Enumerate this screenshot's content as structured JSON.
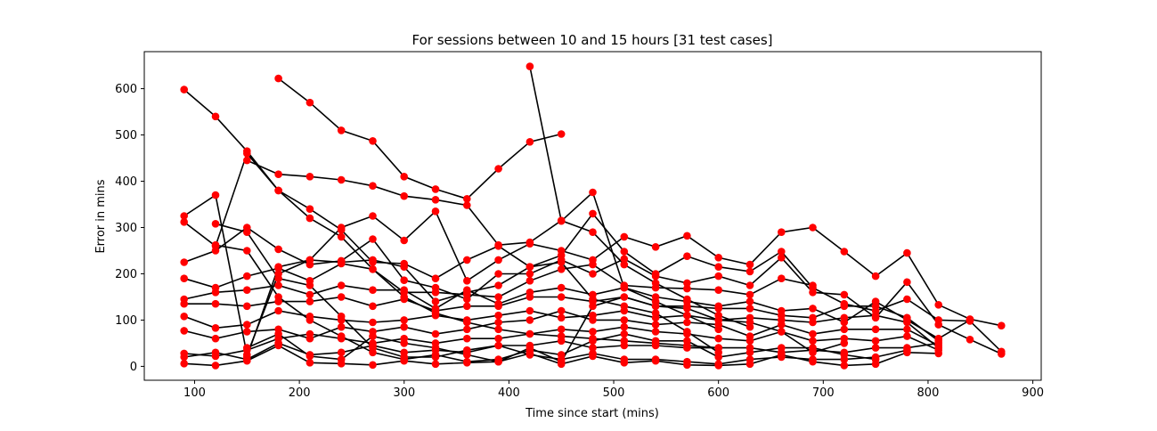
{
  "chart_data": {
    "type": "line",
    "title": "For sessions between 10 and 15 hours [31 test cases]",
    "xlabel": "Time since start (mins)",
    "ylabel": "Error in mins",
    "xlim": [
      52,
      908
    ],
    "ylim": [
      -30,
      680
    ],
    "xticks": [
      100,
      200,
      300,
      400,
      500,
      600,
      700,
      800,
      900
    ],
    "yticks": [
      0,
      100,
      200,
      300,
      400,
      500,
      600
    ],
    "line_color": "#000000",
    "marker_color": "#ff0000",
    "grid": false,
    "series": [
      {
        "x": [
          90,
          120,
          150,
          180,
          210,
          240,
          270,
          300,
          330,
          360,
          390,
          420,
          450,
          480,
          510,
          540,
          570,
          600
        ],
        "y": [
          598,
          540,
          465,
          380,
          320,
          280,
          210,
          150,
          115,
          95,
          80,
          70,
          65,
          60,
          55,
          50,
          45,
          40
        ]
      },
      {
        "x": [
          180,
          210,
          240,
          270,
          300,
          330,
          360,
          390,
          420,
          450
        ],
        "y": [
          622,
          570,
          510,
          487,
          410,
          383,
          362,
          427,
          485,
          502
        ]
      },
      {
        "x": [
          150,
          180,
          210,
          240,
          270,
          300,
          330,
          360,
          390,
          420,
          450,
          480,
          510,
          540,
          570,
          600,
          630
        ],
        "y": [
          445,
          415,
          410,
          403,
          390,
          368,
          360,
          348,
          262,
          268,
          315,
          290,
          220,
          180,
          145,
          110,
          85
        ]
      },
      {
        "x": [
          420,
          450,
          480,
          510,
          540,
          570,
          600
        ],
        "y": [
          648,
          314,
          376,
          170,
          140,
          110,
          80
        ]
      },
      {
        "x": [
          90,
          120,
          150,
          180,
          210,
          240,
          270,
          300,
          330,
          360,
          390,
          420,
          450,
          480,
          510,
          540,
          570,
          600,
          630,
          660,
          690,
          720,
          750,
          780,
          810,
          840,
          870
        ],
        "y": [
          325,
          370,
          25,
          200,
          230,
          300,
          325,
          272,
          335,
          185,
          230,
          265,
          250,
          230,
          280,
          258,
          282,
          235,
          220,
          290,
          300,
          248,
          195,
          245,
          133,
          102,
          88
        ]
      },
      {
        "x": [
          90,
          120,
          150,
          180,
          210,
          240,
          270,
          300,
          330,
          360,
          390,
          420,
          450,
          480,
          510,
          540,
          570,
          600,
          630,
          660,
          690,
          720,
          750,
          780,
          810,
          840,
          870
        ],
        "y": [
          312,
          260,
          460,
          380,
          340,
          295,
          225,
          222,
          190,
          230,
          260,
          215,
          240,
          330,
          248,
          200,
          238,
          215,
          205,
          248,
          170,
          135,
          120,
          145,
          100,
          98,
          32
        ]
      },
      {
        "x": [
          90,
          120,
          150,
          180,
          210,
          240,
          270,
          300,
          330,
          360,
          390,
          420,
          450,
          480,
          510,
          540,
          570,
          600,
          630,
          660,
          690,
          720,
          750,
          780,
          810,
          840,
          870
        ],
        "y": [
          225,
          250,
          300,
          253,
          220,
          228,
          275,
          186,
          170,
          145,
          200,
          200,
          230,
          200,
          232,
          195,
          180,
          195,
          175,
          235,
          160,
          155,
          105,
          182,
          90,
          58,
          27
        ]
      },
      {
        "x": [
          90,
          120,
          150,
          180,
          210,
          240,
          270,
          300,
          330,
          360,
          390,
          420,
          450,
          480,
          510,
          540,
          570,
          600,
          630,
          660,
          690
        ],
        "y": [
          190,
          170,
          195,
          212,
          185,
          222,
          210,
          160,
          160,
          155,
          150,
          185,
          210,
          220,
          175,
          170,
          168,
          165,
          155,
          190,
          175
        ]
      },
      {
        "x": [
          90,
          120,
          150,
          180,
          210,
          240,
          270,
          300,
          330,
          360,
          390,
          420,
          450,
          480,
          510,
          540,
          570,
          600,
          630,
          660,
          690,
          720,
          750,
          780,
          810,
          840
        ],
        "y": [
          145,
          160,
          165,
          175,
          155,
          175,
          165,
          165,
          125,
          165,
          135,
          160,
          170,
          155,
          170,
          150,
          140,
          130,
          140,
          120,
          125,
          95,
          140,
          100,
          60,
          100
        ]
      },
      {
        "x": [
          90,
          120,
          150,
          180,
          210,
          240,
          270,
          300,
          330,
          360,
          390,
          420,
          450,
          480,
          510,
          540,
          570,
          600,
          630,
          660,
          690,
          720,
          750,
          780,
          810
        ],
        "y": [
          135,
          135,
          130,
          140,
          140,
          150,
          130,
          145,
          120,
          130,
          130,
          150,
          150,
          140,
          150,
          130,
          130,
          125,
          125,
          110,
          105,
          130,
          130,
          105,
          55
        ]
      },
      {
        "x": [
          90,
          120,
          150,
          180,
          210,
          240,
          270,
          300,
          330,
          360,
          390,
          420,
          450,
          480,
          510,
          540,
          570,
          600,
          630,
          660,
          690,
          720,
          750,
          780,
          810
        ],
        "y": [
          108,
          83,
          90,
          120,
          108,
          100,
          95,
          100,
          110,
          100,
          110,
          120,
          105,
          110,
          120,
          105,
          110,
          100,
          105,
          100,
          95,
          105,
          110,
          95,
          40
        ]
      },
      {
        "x": [
          90,
          120,
          150,
          180,
          210,
          240,
          270,
          300,
          330,
          360,
          390,
          420,
          450,
          480,
          510,
          540,
          570,
          600,
          630,
          660,
          690,
          720,
          750,
          780,
          810
        ],
        "y": [
          77,
          60,
          75,
          80,
          60,
          85,
          75,
          85,
          70,
          80,
          95,
          100,
          120,
          100,
          100,
          90,
          95,
          90,
          65,
          90,
          70,
          80,
          80,
          80,
          45
        ]
      },
      {
        "x": [
          90,
          120,
          150,
          180,
          210,
          240,
          270,
          300,
          330,
          360,
          390,
          420,
          450,
          480,
          510,
          540,
          570,
          600,
          630,
          660,
          690,
          720,
          750,
          780,
          810
        ],
        "y": [
          28,
          22,
          35,
          60,
          70,
          60,
          50,
          60,
          50,
          60,
          60,
          70,
          80,
          75,
          85,
          75,
          70,
          60,
          55,
          75,
          55,
          60,
          55,
          65,
          35
        ]
      },
      {
        "x": [
          90,
          120,
          150,
          180,
          210,
          240,
          270,
          300,
          330,
          360,
          390,
          420,
          450,
          480,
          510,
          540,
          570,
          600,
          630,
          660,
          690,
          720,
          750,
          780,
          810
        ],
        "y": [
          20,
          30,
          15,
          50,
          25,
          30,
          45,
          30,
          35,
          30,
          45,
          45,
          55,
          40,
          45,
          45,
          40,
          40,
          40,
          30,
          35,
          30,
          40,
          40,
          50
        ]
      },
      {
        "x": [
          90,
          120,
          150,
          180,
          210,
          240,
          270,
          300,
          330,
          360,
          390,
          420,
          450,
          480,
          510,
          540,
          570,
          600,
          630,
          660,
          690,
          720,
          750,
          780,
          810
        ],
        "y": [
          6,
          2,
          12,
          45,
          8,
          6,
          3,
          12,
          5,
          8,
          10,
          28,
          5,
          22,
          8,
          12,
          3,
          2,
          5,
          25,
          10,
          2,
          5,
          30,
          28
        ]
      },
      {
        "x": [
          120,
          150,
          180,
          210,
          240,
          270,
          300,
          330,
          360,
          390,
          420,
          450,
          480,
          510,
          540,
          570,
          600,
          630,
          660,
          690,
          720,
          750,
          780
        ],
        "y": [
          308,
          290,
          190,
          175,
          108,
          40,
          20,
          20,
          35,
          45,
          25,
          15,
          28,
          15,
          15,
          10,
          5,
          15,
          20,
          15,
          15,
          20,
          35
        ]
      },
      {
        "x": [
          120,
          150,
          180,
          210,
          240,
          270,
          300,
          330,
          360,
          390,
          420,
          450,
          480,
          510,
          540,
          570,
          600,
          630,
          660,
          690,
          720,
          750
        ],
        "y": [
          262,
          250,
          150,
          100,
          65,
          30,
          15,
          25,
          10,
          15,
          35,
          25,
          55,
          70,
          55,
          55,
          20,
          30,
          40,
          40,
          25,
          15
        ]
      },
      {
        "x": [
          150,
          180,
          210,
          240,
          270,
          300,
          330,
          360,
          390,
          420,
          450,
          480,
          510,
          540,
          570,
          600,
          630,
          660,
          690,
          720
        ],
        "y": [
          40,
          70,
          22,
          15,
          65,
          50,
          40,
          25,
          10,
          40,
          10,
          130,
          150,
          130,
          125,
          100,
          95,
          75,
          30,
          50
        ]
      },
      {
        "x": [
          150,
          180,
          210,
          240,
          270,
          300,
          330,
          360,
          390,
          420,
          450,
          480,
          510,
          540,
          570,
          600
        ],
        "y": [
          20,
          215,
          230,
          225,
          230,
          215,
          140,
          160,
          175,
          215,
          225,
          145,
          130,
          115,
          75,
          30
        ]
      }
    ]
  }
}
